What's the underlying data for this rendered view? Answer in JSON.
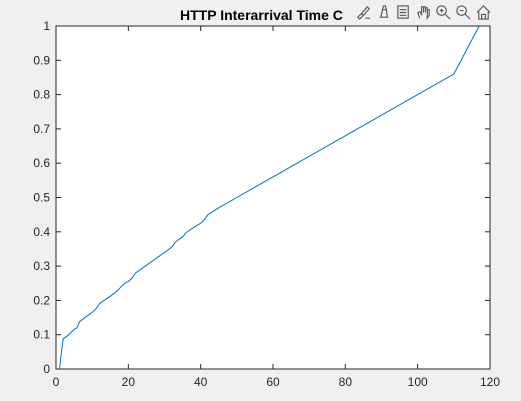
{
  "figure": {
    "title": "HTTP Interarrival Time C",
    "toolbar": [
      {
        "name": "brush-icon",
        "label": "Brush"
      },
      {
        "name": "data-tips-icon",
        "label": "Data Tips"
      },
      {
        "name": "export-icon",
        "label": "Export"
      },
      {
        "name": "pan-icon",
        "label": "Pan"
      },
      {
        "name": "zoom-in-icon",
        "label": "Zoom In"
      },
      {
        "name": "zoom-out-icon",
        "label": "Zoom Out"
      },
      {
        "name": "home-icon",
        "label": "Restore View"
      }
    ]
  },
  "chart_data": {
    "type": "line",
    "title": "HTTP Interarrival Time C",
    "xlabel": "",
    "ylabel": "",
    "xlim": [
      0,
      120
    ],
    "ylim": [
      0,
      1
    ],
    "xticks": [
      0,
      20,
      40,
      60,
      80,
      100,
      120
    ],
    "yticks": [
      0,
      0.1,
      0.2,
      0.3,
      0.4,
      0.5,
      0.6,
      0.7,
      0.8,
      0.9,
      1
    ],
    "xtick_labels": [
      "0",
      "20",
      "40",
      "60",
      "80",
      "100",
      "120"
    ],
    "ytick_labels": [
      "0",
      "0.1",
      "0.2",
      "0.3",
      "0.4",
      "0.5",
      "0.6",
      "0.7",
      "0.8",
      "0.9",
      "1"
    ],
    "grid": false,
    "colors": {
      "line": "#0072bd"
    },
    "series": [
      {
        "x": [
          1.0,
          1.5,
          2.0,
          2.5,
          3.0,
          4.0,
          5.0,
          5.8,
          6.5,
          8.0,
          10.0,
          11.0,
          12.0,
          13.0,
          14.0,
          15.0,
          16.0,
          17.0,
          18.0,
          19.0,
          20.0,
          21.0,
          22.0,
          24.0,
          26.0,
          28.0,
          30.0,
          32.0,
          33.0,
          34.0,
          35.0,
          36.0,
          37.0,
          38.0,
          40.0,
          41.0,
          42.0,
          45.0,
          50.0,
          55.0,
          60.0,
          70.0,
          80.0,
          90.0,
          100.0,
          110.0,
          117.0
        ],
        "y": [
          0.0,
          0.05,
          0.088,
          0.092,
          0.095,
          0.105,
          0.115,
          0.12,
          0.138,
          0.15,
          0.165,
          0.175,
          0.19,
          0.198,
          0.205,
          0.212,
          0.22,
          0.228,
          0.24,
          0.25,
          0.255,
          0.265,
          0.28,
          0.295,
          0.31,
          0.325,
          0.34,
          0.355,
          0.37,
          0.378,
          0.385,
          0.398,
          0.405,
          0.412,
          0.425,
          0.435,
          0.45,
          0.47,
          0.5,
          0.53,
          0.56,
          0.62,
          0.68,
          0.74,
          0.8,
          0.86,
          1.0
        ]
      }
    ]
  }
}
